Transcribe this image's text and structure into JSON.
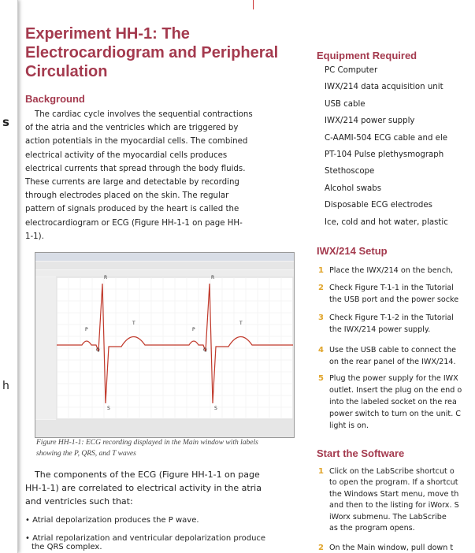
{
  "margin_fragments": [
    "s",
    "h"
  ],
  "title_lines": [
    "Experiment HH-1: The",
    "Electrocardiogram and Peripheral",
    "Circulation"
  ],
  "background": {
    "heading": "Background",
    "lines": [
      "The cardiac cycle involves the sequential contractions",
      "of the atria and the ventricles which are triggered by",
      "action potentials in the myocardial cells. The combined",
      "electrical activity of the myocardial cells produces",
      "electrical currents that spread through the body fluids.",
      "These currents are large and detectable by recording",
      "through electrodes placed on the skin. The regular",
      "pattern of signals produced by the heart is called the",
      "electrocardiogram or ECG (Figure HH-1-1 on page HH-",
      "1-1)."
    ]
  },
  "figure": {
    "labels": [
      "P",
      "Q",
      "R",
      "S",
      "T",
      "P",
      "Q",
      "R",
      "S",
      "T"
    ],
    "caption_lines": [
      "Figure HH-1-1: ECG recording displayed in the Main window with labels",
      "showing the P, QRS, and T waves"
    ]
  },
  "components": {
    "lines": [
      "The components of the ECG (Figure HH-1-1 on page",
      "HH-1-1) are correlated to electrical activity in the atria",
      "and ventricles such that:"
    ],
    "bullets": [
      [
        "• Atrial depolarization produces the P wave."
      ],
      [
        "• Atrial repolarization and ventricular depolarization produce",
        "the QRS complex."
      ]
    ]
  },
  "equipment": {
    "heading": "Equipment Required",
    "items": [
      "PC Computer",
      "IWX/214 data acquisition unit",
      "USB cable",
      "IWX/214 power supply",
      "C-AAMI-504 ECG cable and ele",
      "PT-104 Pulse plethysmograph",
      "Stethoscope",
      "Alcohol swabs",
      "Disposable ECG electrodes",
      "Ice, cold and hot water, plastic"
    ]
  },
  "setup": {
    "heading": "IWX/214 Setup",
    "steps": [
      {
        "number": "1",
        "lines": [
          "Place the IWX/214 on the bench,"
        ]
      },
      {
        "number": "2",
        "lines": [
          "Check Figure T-1-1 in the Tutorial",
          "the USB port and the power socke"
        ]
      },
      {
        "number": "3",
        "lines": [
          "Check Figure T-1-2 in the Tutorial",
          "the IWX/214 power supply."
        ]
      },
      {
        "number": "4",
        "lines": [
          "Use the USB cable to connect the",
          "on the rear panel of the IWX/214."
        ]
      },
      {
        "number": "5",
        "lines": [
          "Plug the power supply for the IWX",
          "outlet. Insert the plug on the end o",
          "into the labeled socket on the rea",
          "power switch to turn on the unit. C",
          "light is on."
        ]
      }
    ]
  },
  "software": {
    "heading": "Start the Software",
    "steps": [
      {
        "number": "1",
        "lines": [
          "Click on the LabScribe shortcut o",
          "to open the program. If a shortcut",
          "the Windows Start menu, move th",
          "and then to the listing for iWorx. S",
          "iWorx submenu. The LabScribe",
          "as the program opens."
        ]
      },
      {
        "number": "2",
        "lines": [
          "On the Main window, pull down t"
        ]
      }
    ]
  }
}
